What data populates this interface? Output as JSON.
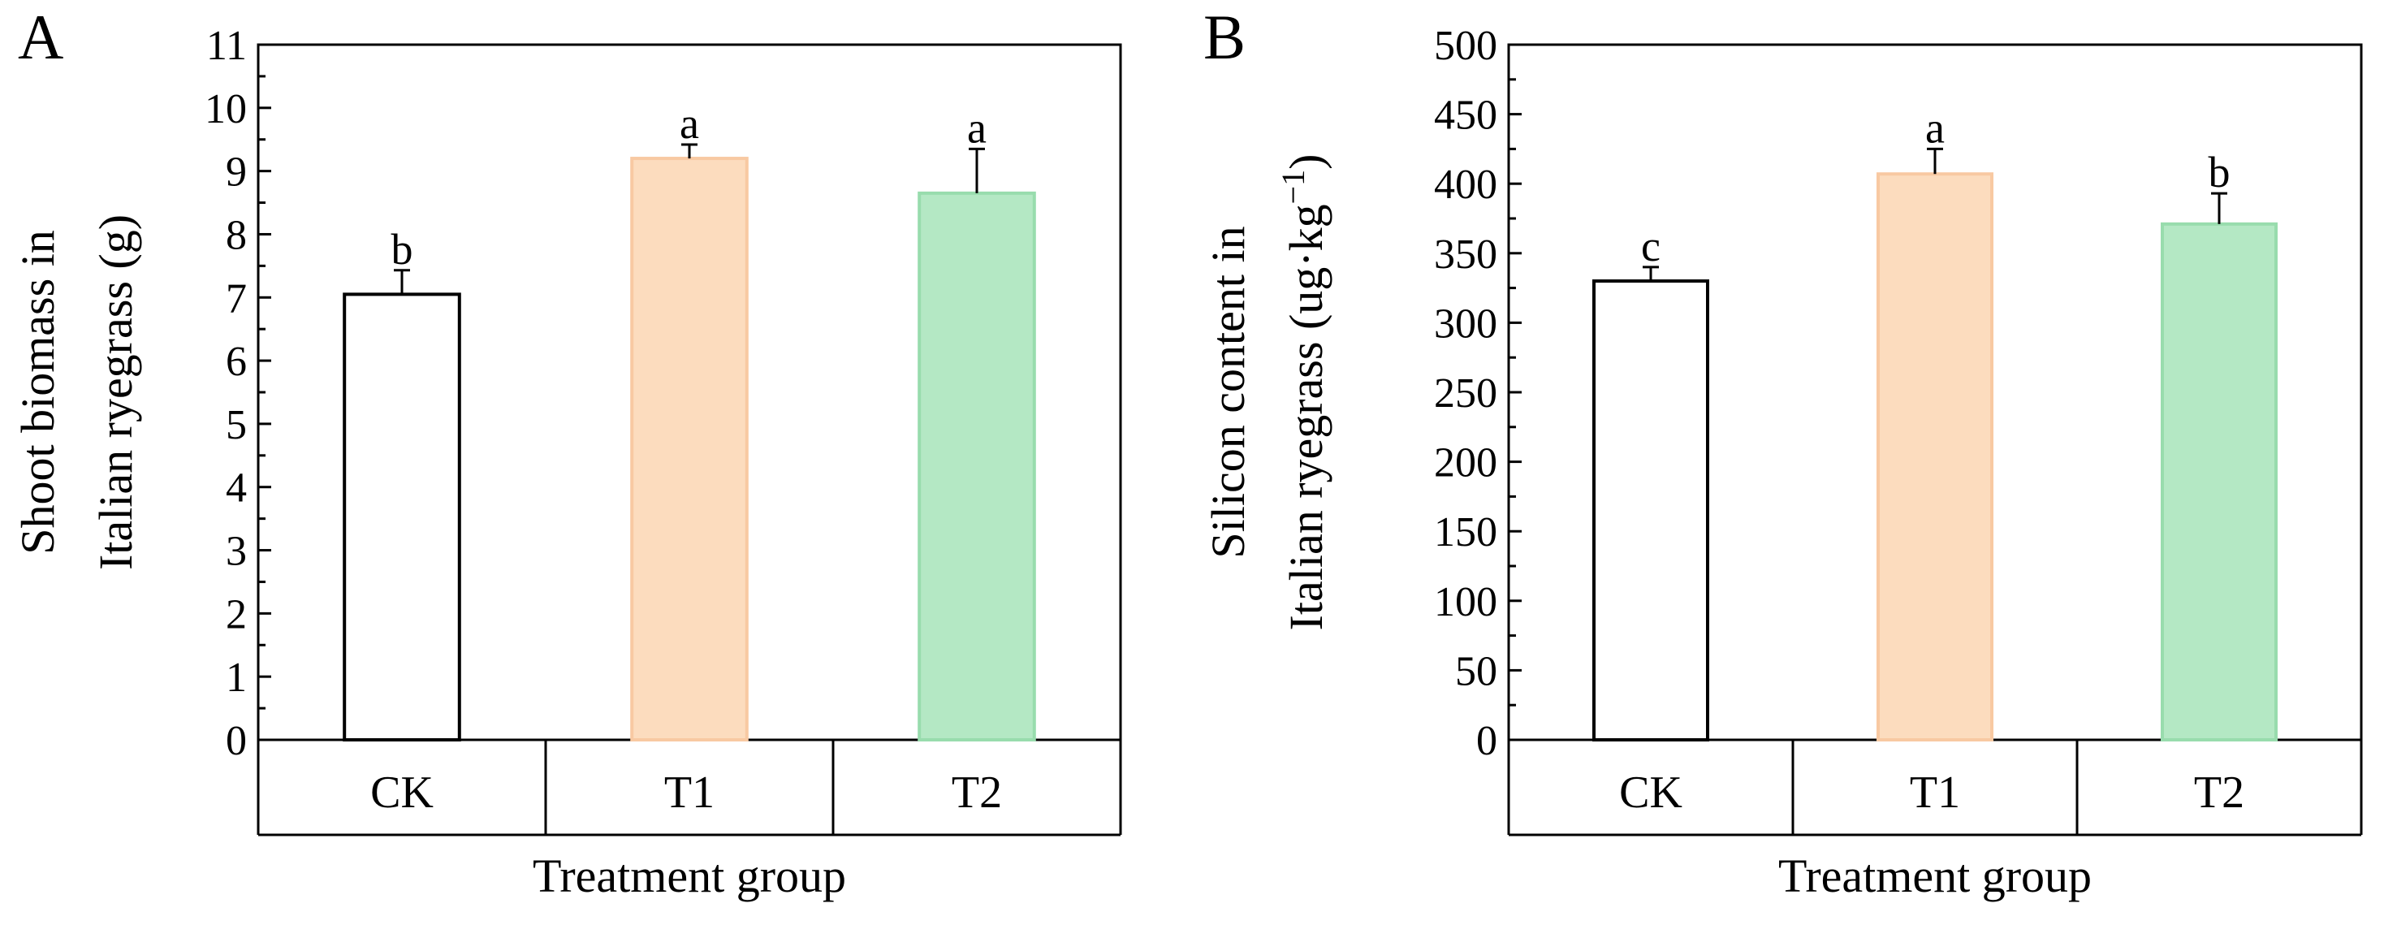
{
  "figure": {
    "colors": {
      "axis": "#000000",
      "CK_fill": "#ffffff",
      "CK_stroke": "#000000",
      "T1_fill": "#fcdcbe",
      "T1_stroke": "#f8c9a2",
      "T2_fill": "#b4e8c4",
      "T2_stroke": "#98dcad",
      "error_bar": "#000000"
    }
  },
  "chart_data": [
    {
      "panel": "A",
      "type": "bar",
      "categories": [
        "CK",
        "T1",
        "T2"
      ],
      "values": [
        7.05,
        9.2,
        8.65
      ],
      "errors": [
        0.38,
        0.22,
        0.7
      ],
      "significance": [
        "b",
        "a",
        "a"
      ],
      "ylabel_lines": [
        "Shoot biomass in",
        "Italian ryegrass (g)"
      ],
      "xlabel": "Treatment group",
      "ylim": [
        0,
        11
      ],
      "yticks": [
        0,
        1,
        2,
        3,
        4,
        5,
        6,
        7,
        8,
        9,
        10,
        11
      ],
      "ytick_labels": [
        "0",
        "1",
        "2",
        "3",
        "4",
        "5",
        "6",
        "7",
        "8",
        "9",
        "10",
        "11"
      ],
      "grid": false,
      "legend": "none"
    },
    {
      "panel": "B",
      "type": "bar",
      "categories": [
        "CK",
        "T1",
        "T2"
      ],
      "values": [
        330,
        407,
        371
      ],
      "errors": [
        10,
        18,
        22
      ],
      "significance": [
        "c",
        "a",
        "b"
      ],
      "ylabel_lines": [
        "Silicon content in",
        "Italian ryegrass (ug·kg",
        "−1",
        ")"
      ],
      "xlabel": "Treatment group",
      "ylim": [
        0,
        500
      ],
      "yticks": [
        0,
        50,
        100,
        150,
        200,
        250,
        300,
        350,
        400,
        450,
        500
      ],
      "ytick_labels": [
        "0",
        "50",
        "100",
        "150",
        "200",
        "250",
        "300",
        "350",
        "400",
        "450",
        "500"
      ],
      "grid": false,
      "legend": "none"
    }
  ]
}
